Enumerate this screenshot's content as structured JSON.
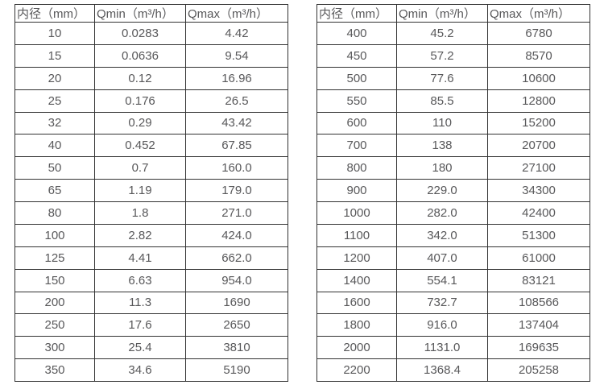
{
  "colors": {
    "background": "#ffffff",
    "border": "#333333",
    "text": "#58585a"
  },
  "tables": [
    {
      "name": "flow-rate-table-small-diameters",
      "headers": [
        "内径（mm）",
        "Qmin（m³/h）",
        "Qmax（m³/h）"
      ],
      "rows": [
        [
          "10",
          "0.0283",
          "4.42"
        ],
        [
          "15",
          "0.0636",
          "9.54"
        ],
        [
          "20",
          "0.12",
          "16.96"
        ],
        [
          "25",
          "0.176",
          "26.5"
        ],
        [
          "32",
          "0.29",
          "43.42"
        ],
        [
          "40",
          "0.452",
          "67.85"
        ],
        [
          "50",
          "0.7",
          "160.0"
        ],
        [
          "65",
          "1.19",
          "179.0"
        ],
        [
          "80",
          "1.8",
          "271.0"
        ],
        [
          "100",
          "2.82",
          "424.0"
        ],
        [
          "125",
          "4.41",
          "662.0"
        ],
        [
          "150",
          "6.63",
          "954.0"
        ],
        [
          "200",
          "11.3",
          "1690"
        ],
        [
          "250",
          "17.6",
          "2650"
        ],
        [
          "300",
          "25.4",
          "3810"
        ],
        [
          "350",
          "34.6",
          "5190"
        ]
      ]
    },
    {
      "name": "flow-rate-table-large-diameters",
      "headers": [
        "内径（mm）",
        "Qmin（m³/h）",
        "Qmax（m³/h）"
      ],
      "rows": [
        [
          "400",
          "45.2",
          "6780"
        ],
        [
          "450",
          "57.2",
          "8570"
        ],
        [
          "500",
          "77.6",
          "10600"
        ],
        [
          "550",
          "85.5",
          "12800"
        ],
        [
          "600",
          "110",
          "15200"
        ],
        [
          "700",
          "138",
          "20700"
        ],
        [
          "800",
          "180",
          "27100"
        ],
        [
          "900",
          "229.0",
          "34300"
        ],
        [
          "1000",
          "282.0",
          "42400"
        ],
        [
          "1100",
          "342.0",
          "51300"
        ],
        [
          "1200",
          "407.0",
          "61000"
        ],
        [
          "1400",
          "554.1",
          "83121"
        ],
        [
          "1600",
          "732.7",
          "108566"
        ],
        [
          "1800",
          "916.0",
          "137404"
        ],
        [
          "2000",
          "1131.0",
          "169635"
        ],
        [
          "2200",
          "1368.4",
          "205258"
        ]
      ]
    }
  ]
}
